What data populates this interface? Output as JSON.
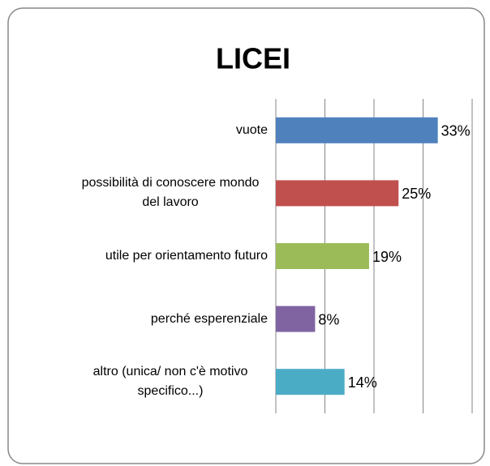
{
  "chart_data": {
    "type": "bar",
    "orientation": "horizontal",
    "title": "LICEI",
    "categories": [
      "vuote",
      "possibilità di conoscere mondo del lavoro",
      "utile per orientamento futuro",
      "perché esperenziale",
      "altro (unica/ non c'è motivo specifico...)"
    ],
    "values": [
      33,
      25,
      19,
      8,
      14
    ],
    "value_labels": [
      "33%",
      "25%",
      "19%",
      "8%",
      "14%"
    ],
    "colors": [
      "#4f81bd",
      "#c0504d",
      "#9bbb59",
      "#8064a2",
      "#4bacc6"
    ],
    "xlim": [
      0,
      40
    ],
    "xticks": [
      0,
      10,
      20,
      30,
      40
    ],
    "grid": true
  }
}
